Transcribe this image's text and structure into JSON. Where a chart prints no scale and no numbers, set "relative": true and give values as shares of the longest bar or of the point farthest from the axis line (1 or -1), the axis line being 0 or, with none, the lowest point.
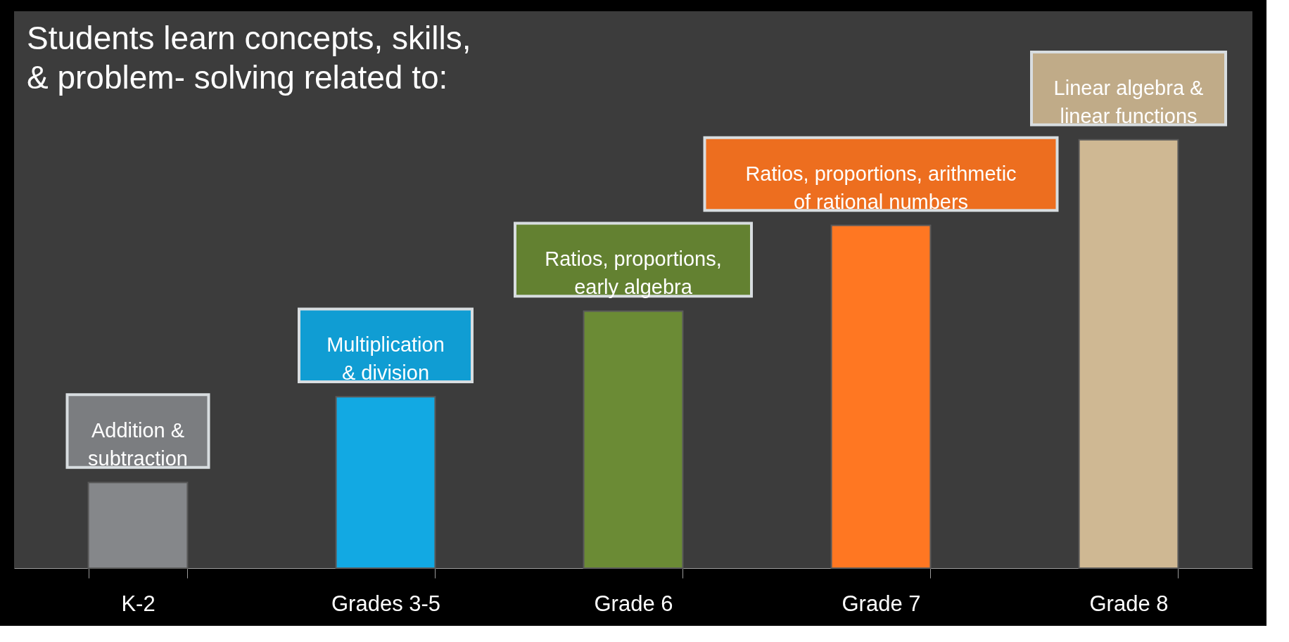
{
  "chart_data": {
    "type": "bar",
    "title": [
      "Students learn concepts, skills,",
      "& problem- solving related to:"
    ],
    "categories": [
      "K-2",
      "Grades 3-5",
      "Grade 6",
      "Grade 7",
      "Grade 8"
    ],
    "values": [
      0.2,
      0.4,
      0.6,
      0.8,
      1
    ],
    "colors": [
      "#85878a",
      "#12a9e3",
      "#6b8b35",
      "#ff7722",
      "#cfb893"
    ],
    "relative": true,
    "annotations": [
      {
        "text": "Addition &\nsubtraction",
        "x": "K-2",
        "y": 0.2
      },
      {
        "text": "Multiplication\n& division",
        "x": "Grades 3-5",
        "y": 0.4
      },
      {
        "text": "Ratios, proportions,\nearly algebra",
        "x": "Grade 6",
        "y": 0.6
      },
      {
        "text": "Ratios, proportions, arithmetic\nof rational numbers",
        "x": "Grade 7",
        "y": 0.8
      },
      {
        "text": "Linear algebra &\nlinear functions",
        "x": "Grade 8",
        "y": 1
      }
    ],
    "legend": false
  }
}
